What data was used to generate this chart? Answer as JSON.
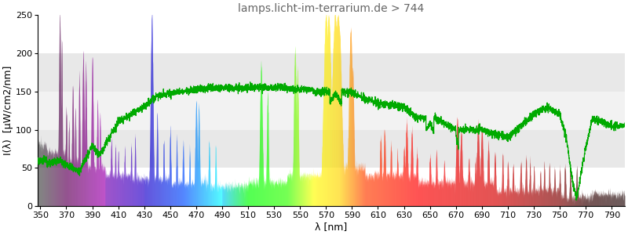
{
  "title": "lamps.licht-im-terrarium.de > 744",
  "xlabel": "λ [nm]",
  "ylabel": "I(λ)  [µW/cm2/nm]",
  "xlim": [
    348,
    800
  ],
  "ylim": [
    0,
    250
  ],
  "yticks": [
    0,
    50,
    100,
    150,
    200,
    250
  ],
  "xticks": [
    350,
    370,
    390,
    410,
    430,
    450,
    470,
    490,
    510,
    530,
    550,
    570,
    590,
    610,
    630,
    650,
    670,
    690,
    710,
    730,
    750,
    770,
    790
  ],
  "background_color": "#ffffff",
  "title_color": "#666666",
  "title_fontsize": 10,
  "axis_label_fontsize": 9,
  "tick_fontsize": 8,
  "hbands": [
    {
      "ymin": 150,
      "ymax": 200,
      "color": "#e8e8e8"
    },
    {
      "ymin": 100,
      "ymax": 150,
      "color": "#f2f2f2"
    },
    {
      "ymin": 50,
      "ymax": 100,
      "color": "#e8e8e8"
    }
  ]
}
